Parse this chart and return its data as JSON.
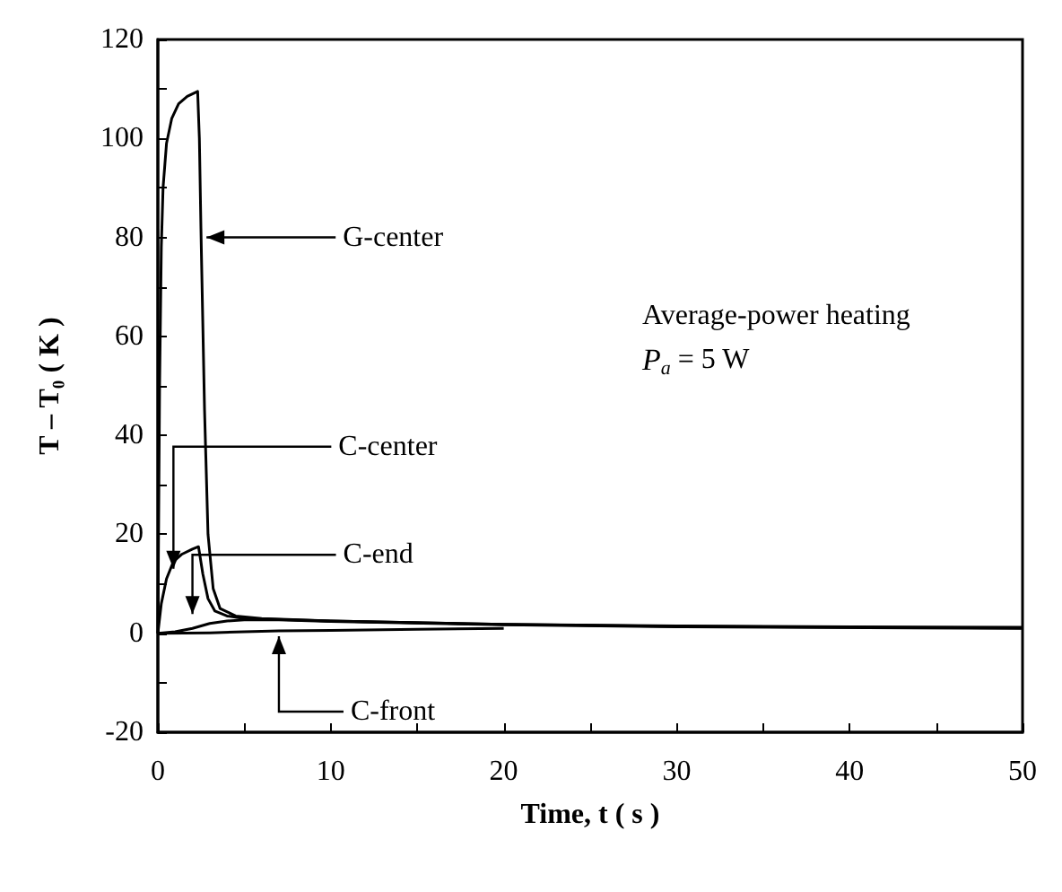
{
  "chart_data": {
    "type": "line",
    "xlabel": "Time, t ( s )",
    "ylabel": "T – T₀ ( K )",
    "annotations": [
      "Average-power heating",
      "P$_{a}$ = 5 W"
    ],
    "xlim": [
      0,
      50
    ],
    "xticks": [
      0,
      {
        "value": 5,
        "label": null
      },
      10,
      {
        "value": 15,
        "label": null
      },
      20,
      {
        "value": 25,
        "label": null
      },
      30,
      {
        "value": 35,
        "label": null
      },
      40,
      {
        "value": 45,
        "label": null
      },
      50
    ],
    "ylim": [
      -20,
      120
    ],
    "yticks": [
      -20,
      {
        "value": -10,
        "label": null
      },
      0,
      {
        "value": 10,
        "label": null
      },
      20,
      {
        "value": 30,
        "label": null
      },
      40,
      {
        "value": 50,
        "label": null
      },
      60,
      {
        "value": 70,
        "label": null
      },
      80,
      {
        "value": 90,
        "label": null
      },
      100,
      {
        "value": 110,
        "label": null
      },
      120
    ],
    "grid": false,
    "marker": "none",
    "line_style": "solid",
    "series": [
      {
        "name": "G-center",
        "color": "#000000",
        "x": [
          0,
          0.1,
          0.2,
          0.3,
          0.5,
          0.8,
          1.2,
          1.7,
          2.3,
          2.4,
          2.5,
          2.7,
          2.9,
          3.2,
          3.6,
          4.5,
          6,
          10,
          20,
          30,
          40,
          50
        ],
        "values": [
          0,
          50,
          78,
          90,
          99,
          104,
          107,
          108.5,
          109.5,
          100,
          80,
          45,
          20,
          9,
          5,
          3.5,
          3,
          2.5,
          1.8,
          1.5,
          1.3,
          1.2
        ]
      },
      {
        "name": "C-center",
        "color": "#000000",
        "x": [
          0,
          0.2,
          0.5,
          0.9,
          1.4,
          2,
          2.35,
          2.6,
          2.9,
          3.3,
          4,
          5,
          10,
          20,
          30,
          40,
          50
        ],
        "values": [
          0,
          6,
          11,
          14.5,
          16,
          17,
          17.5,
          12,
          7,
          4.5,
          3.5,
          3,
          2.5,
          1.8,
          1.4,
          1.2,
          1.1
        ]
      },
      {
        "name": "C-end",
        "color": "#000000",
        "x": [
          0,
          1,
          2,
          3,
          4,
          5,
          7,
          10,
          20,
          30,
          50
        ],
        "values": [
          0,
          0.3,
          1,
          2,
          2.5,
          2.7,
          2.7,
          2.4,
          1.7,
          1.3,
          1
        ]
      },
      {
        "name": "C-front",
        "color": "#000000",
        "x": [
          0,
          3,
          5,
          7,
          10,
          15,
          20
        ],
        "values": [
          0,
          0.1,
          0.3,
          0.5,
          0.6,
          0.8,
          1
        ]
      }
    ]
  }
}
